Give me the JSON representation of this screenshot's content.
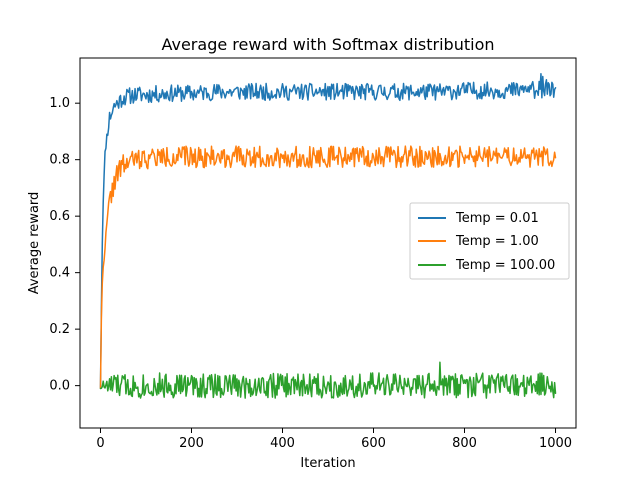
{
  "chart_data": {
    "type": "line",
    "title": "Average reward with Softmax distribution",
    "xlabel": "Iteration",
    "ylabel": "Average reward",
    "xlim": [
      -45,
      1045
    ],
    "ylim": [
      -0.15,
      1.16
    ],
    "xticks": [
      0,
      200,
      400,
      600,
      800,
      1000
    ],
    "xtick_labels": [
      "0",
      "200",
      "400",
      "600",
      "800",
      "1000"
    ],
    "yticks": [
      0.0,
      0.2,
      0.4,
      0.6,
      0.8,
      1.0
    ],
    "ytick_labels": [
      "0.0",
      "0.2",
      "0.4",
      "0.6",
      "0.8",
      "1.0"
    ],
    "grid": false,
    "legend_position": "center-right",
    "series": [
      {
        "name": "Temp = 0.01",
        "color": "#1f77b4",
        "x": [
          0,
          2,
          5,
          10,
          15,
          20,
          30,
          50,
          75,
          100,
          150,
          200,
          250,
          300,
          350,
          400,
          450,
          500,
          550,
          600,
          650,
          700,
          750,
          800,
          850,
          900,
          950,
          1000
        ],
        "values": [
          0.0,
          0.28,
          0.62,
          0.82,
          0.9,
          0.95,
          0.99,
          1.02,
          1.03,
          1.03,
          1.035,
          1.035,
          1.04,
          1.04,
          1.04,
          1.04,
          1.04,
          1.04,
          1.04,
          1.04,
          1.04,
          1.04,
          1.04,
          1.045,
          1.045,
          1.045,
          1.045,
          1.045
        ]
      },
      {
        "name": "Temp = 1.00",
        "color": "#ff7f0e",
        "x": [
          0,
          2,
          5,
          10,
          15,
          20,
          30,
          40,
          50,
          60,
          75,
          100,
          150,
          200,
          250,
          300,
          350,
          400,
          450,
          500,
          550,
          600,
          650,
          700,
          750,
          800,
          850,
          900,
          950,
          1000
        ],
        "values": [
          0.0,
          0.25,
          0.4,
          0.5,
          0.58,
          0.65,
          0.72,
          0.76,
          0.78,
          0.79,
          0.8,
          0.805,
          0.81,
          0.81,
          0.81,
          0.81,
          0.81,
          0.81,
          0.81,
          0.81,
          0.81,
          0.81,
          0.81,
          0.81,
          0.81,
          0.81,
          0.81,
          0.81,
          0.81,
          0.81
        ]
      },
      {
        "name": "Temp = 100.00",
        "color": "#2ca02c",
        "x": [
          0,
          100,
          200,
          300,
          400,
          500,
          600,
          700,
          800,
          900,
          1000
        ],
        "values": [
          0.0,
          0.0,
          0.0,
          0.0,
          0.0,
          0.0,
          0.0,
          0.0,
          0.0,
          0.0,
          0.0
        ]
      }
    ]
  }
}
